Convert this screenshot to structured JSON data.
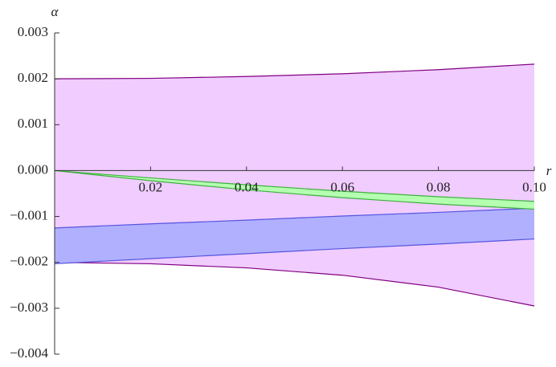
{
  "chart_data": {
    "type": "band",
    "x_label": "r",
    "y_label": "α",
    "x": [
      0,
      0.02,
      0.04,
      0.06,
      0.08,
      0.1
    ],
    "series": [
      {
        "color": "#f0ccff",
        "edge_color": "#800080",
        "upper": [
          0.002,
          0.00201,
          0.00205,
          0.00211,
          0.0022,
          0.00232
        ],
        "lower": [
          -0.002,
          -0.00203,
          -0.00212,
          -0.00228,
          -0.00254,
          -0.00295
        ]
      },
      {
        "color": "#b0b0ff",
        "edge_color": "#5555dd",
        "upper": [
          -0.00125,
          -0.00116,
          -0.00108,
          -0.00099,
          -0.00091,
          -0.00082
        ],
        "lower": [
          -0.00203,
          -0.00192,
          -0.00181,
          -0.0017,
          -0.0016,
          -0.00149
        ]
      },
      {
        "color": "#b4ffb0",
        "edge_color": "#40b040",
        "upper": [
          0,
          -0.00016,
          -0.00031,
          -0.00045,
          -0.00057,
          -0.00067
        ],
        "lower": [
          0,
          -0.00022,
          -0.00042,
          -0.00059,
          -0.00073,
          -0.00084
        ]
      }
    ],
    "xlim": [
      0,
      0.1
    ],
    "ylim": [
      -0.004,
      0.003
    ],
    "xticks": [
      0.02,
      0.04,
      0.06,
      0.08,
      {
        "value": 0.1,
        "label": "0.10"
      }
    ],
    "yticks": [
      0.003,
      0.002,
      0.001,
      {
        "value": 0,
        "label": "0.000"
      },
      {
        "value": -0.001,
        "label": "−0.001"
      },
      {
        "value": -0.002,
        "label": "−0.002"
      },
      {
        "value": -0.003,
        "label": "−0.003"
      },
      {
        "value": -0.004,
        "label": "−0.004"
      }
    ]
  }
}
